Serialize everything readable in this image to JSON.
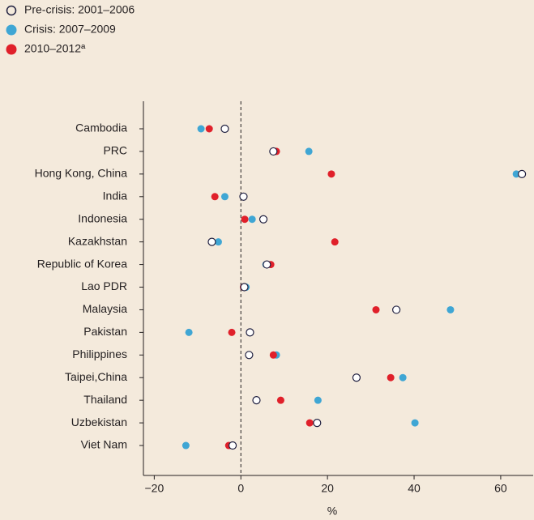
{
  "chart_data": {
    "type": "dot",
    "xlabel": "%",
    "categories": [
      "Cambodia",
      "PRC",
      "Hong Kong, China",
      "India",
      "Indonesia",
      "Kazakhstan",
      "Republic of Korea",
      "Lao PDR",
      "Malaysia",
      "Pakistan",
      "Philippines",
      "Taipei,China",
      "Thailand",
      "Uzbekistan",
      "Viet Nam"
    ],
    "series": [
      {
        "name": "Pre-crisis: 2001–2006",
        "color": "#1f1f3f",
        "marker": "open",
        "values": [
          -3.7,
          7.5,
          64.9,
          0.6,
          5.2,
          -6.7,
          6.0,
          0.8,
          35.9,
          2.1,
          1.9,
          26.7,
          3.6,
          17.6,
          -1.9
        ]
      },
      {
        "name": "Crisis: 2007–2009",
        "color": "#3fa6d4",
        "marker": "filled",
        "values": [
          -9.2,
          15.7,
          63.6,
          -3.7,
          2.6,
          -5.2,
          5.8,
          1.2,
          48.4,
          -12.0,
          8.2,
          37.4,
          17.8,
          40.2,
          -12.7
        ]
      },
      {
        "name": "2010–2012ª",
        "color": "#e0202a",
        "marker": "filled",
        "values": [
          -7.3,
          8.2,
          20.9,
          -6.0,
          0.9,
          21.7,
          6.9,
          0.6,
          31.2,
          -2.1,
          7.5,
          34.6,
          9.2,
          15.9,
          -2.8
        ]
      }
    ],
    "xlim": [
      -22.5,
      67.5
    ],
    "xticks": [
      {
        "value": -20,
        "label": "−20"
      },
      0,
      20,
      40,
      60
    ],
    "reference_line": 0
  }
}
